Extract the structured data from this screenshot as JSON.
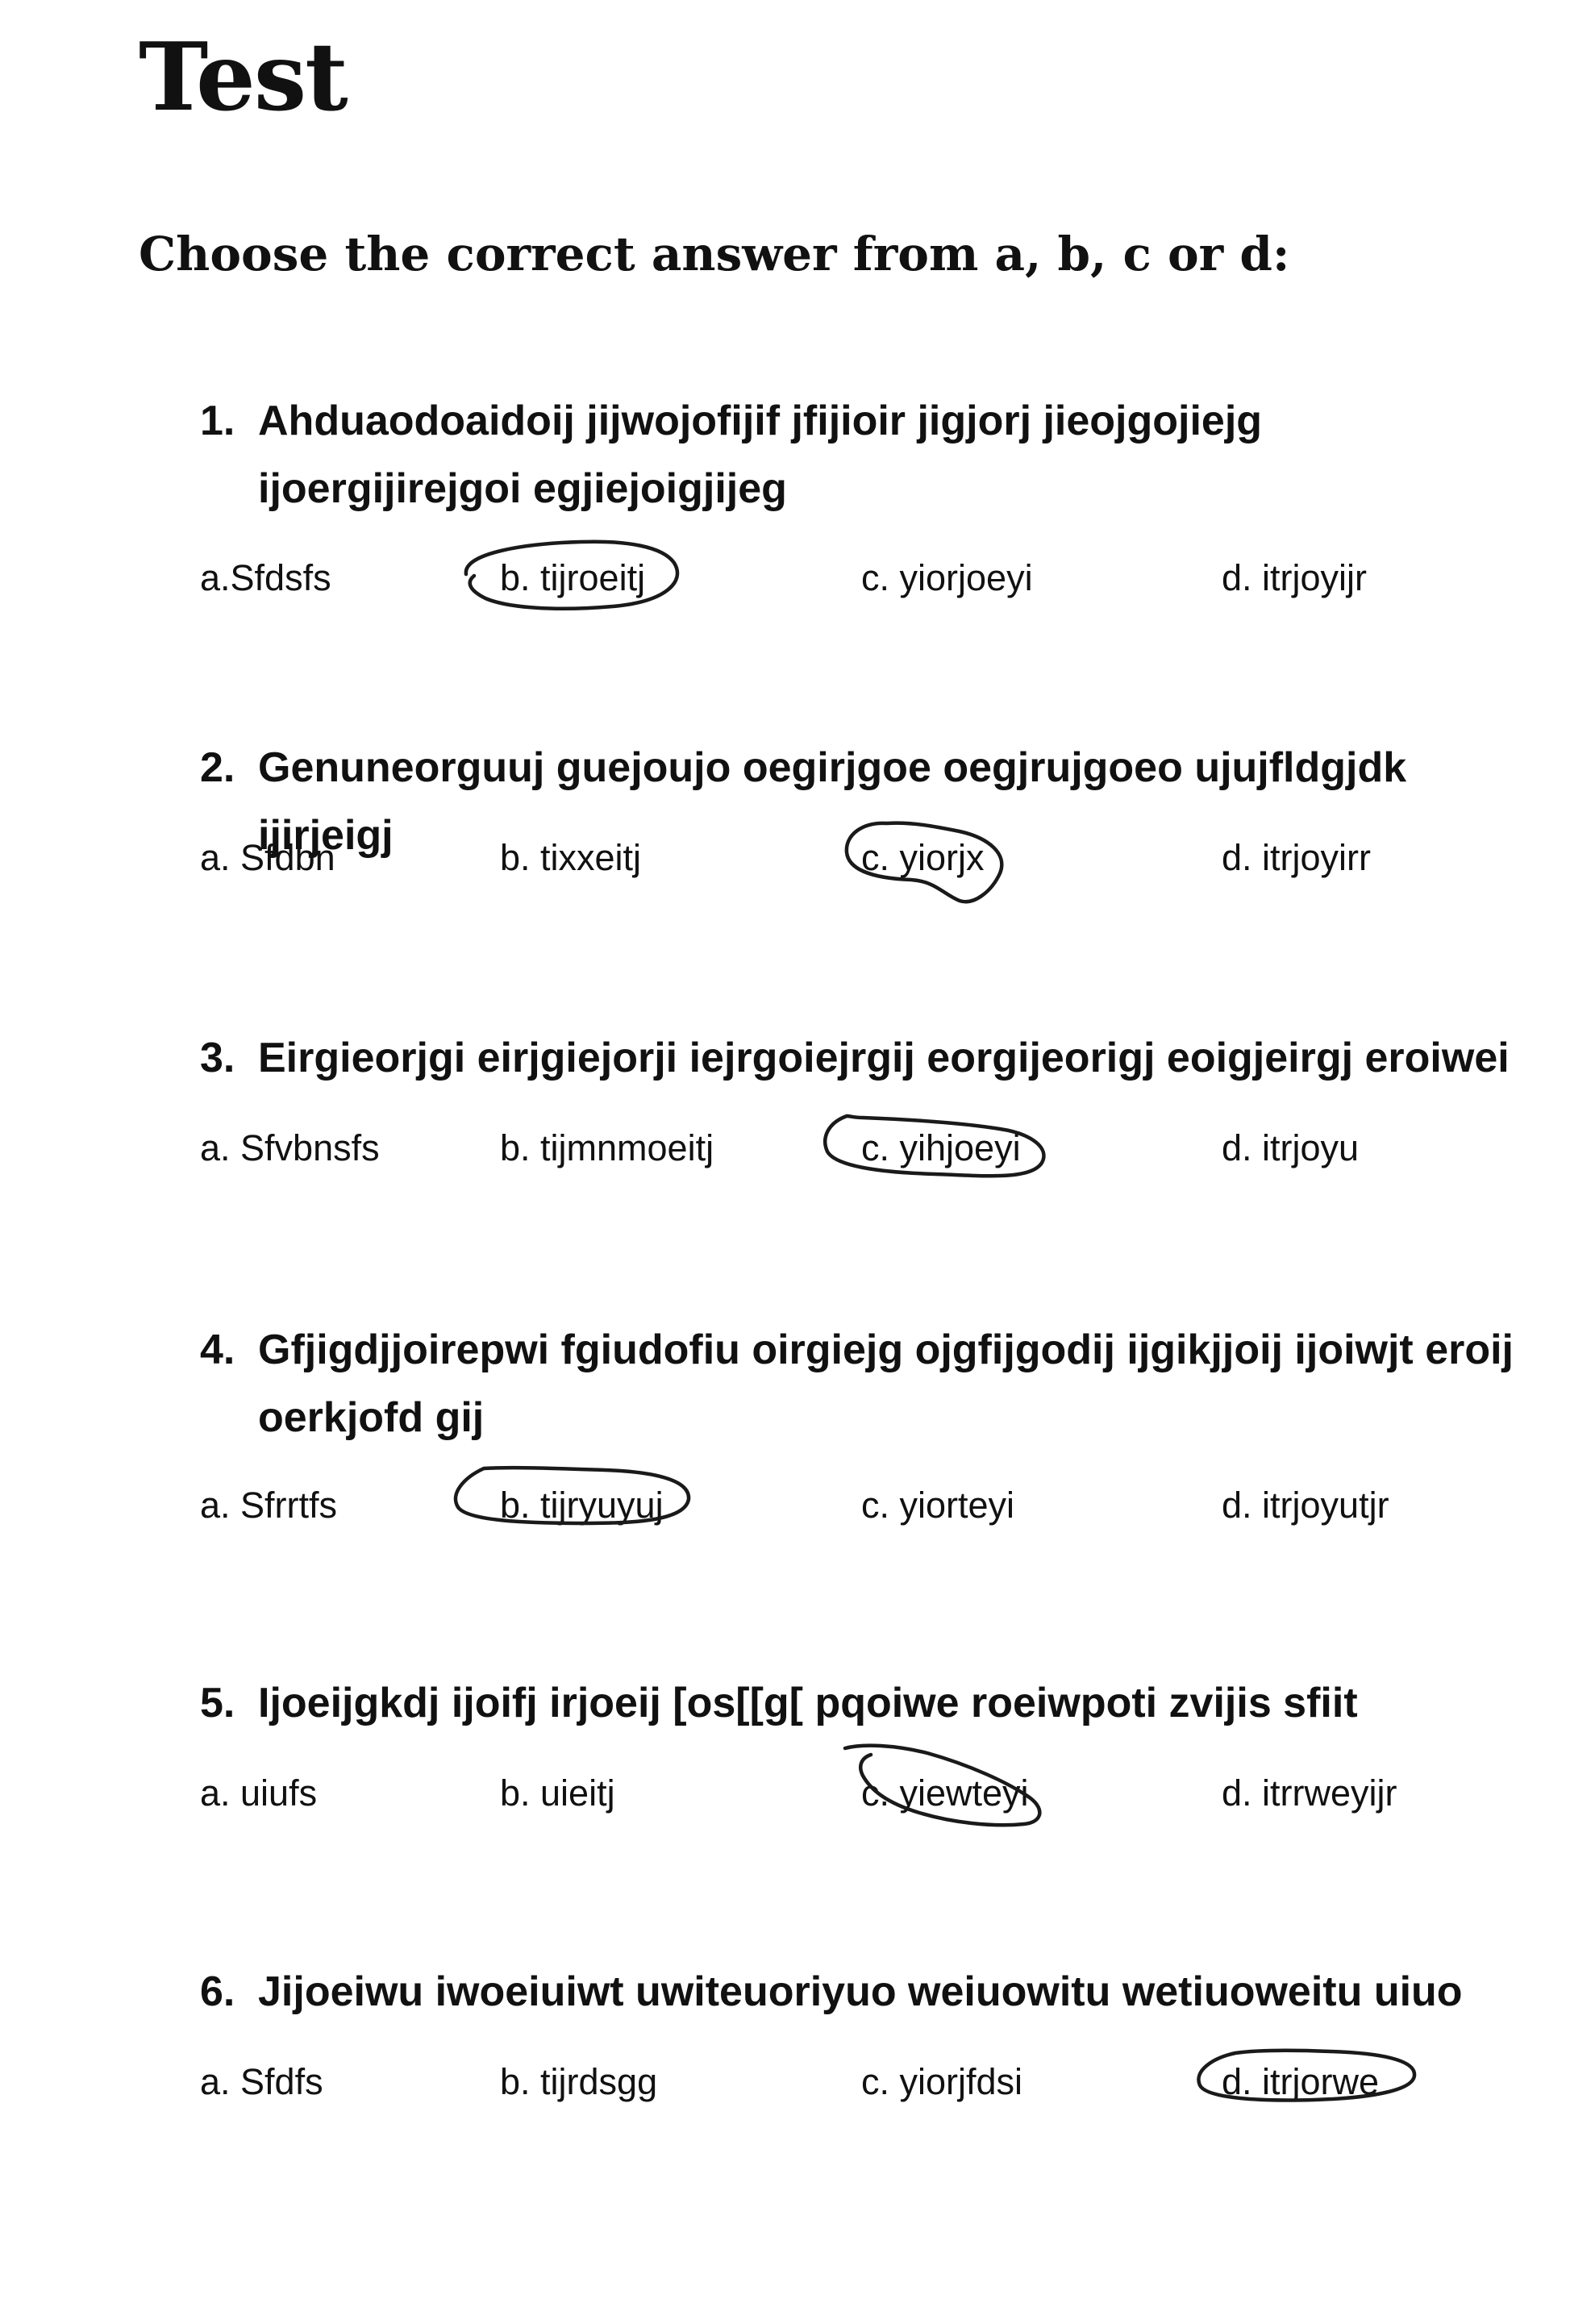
{
  "title": "Test",
  "instruction": "Choose the correct answer from a, b, c or d:",
  "questions": [
    {
      "number": "1.",
      "text": "Ahduaodoaidoij jijwojofijif jfijioir jigjorj jieojgojiejg ijoergijirejgoi egjiejoigjijeg",
      "options": [
        "a.Sfdsfs",
        "b. tijroeitj",
        "c. yiorjoeyi",
        "d. itrjoyijr"
      ],
      "circled": "b"
    },
    {
      "number": "2.",
      "text": "Genuneorguuj guejoujo oegirjgoe oegjrujgoeo ujujfldgjdk ijirjeigj",
      "options": [
        "a. Sfdbn",
        "b. tixxeitj",
        "c. yiorjx",
        "d. itrjoyirr"
      ],
      "circled": "c"
    },
    {
      "number": "3.",
      "text": "Eirgieorjgi eirjgiejorji iejrgoiejrgij eorgijeorigj eoigjeirgj eroiwei",
      "options": [
        "a. Sfvbnsfs",
        "b. tijmnmoeitj",
        "c. yihjoeyi",
        "d. itrjoyu"
      ],
      "circled": "c"
    },
    {
      "number": "4.",
      "text": "Gfjigdjjoirepwi fgiudofiu oirgiejg ojgfijgodij ijgikjjoij ijoiwjt eroij oerkjofd gij",
      "options": [
        "a. Sfrrtfs",
        "b. tijryuyuj",
        "c. yiorteyi",
        "d. itrjoyutjr"
      ],
      "circled": "b"
    },
    {
      "number": "5.",
      "text": "Ijoeijgkdj ijoifj irjoeij [os[[g[ pqoiwe roeiwpoti zvijis sfiit",
      "options": [
        "a. uiufs",
        "b. uieitj",
        "c. yiewteyi",
        "d. itrrweyijr"
      ],
      "circled": "c"
    },
    {
      "number": "6.",
      "text": "Jijoeiwu iwoeiuiwt uwiteuoriyuo weiuowitu wetiuoweitu uiuo",
      "options": [
        "a. Sfdfs",
        "b. tijrdsgg",
        "c. yiorjfdsi",
        "d. itrjorwe"
      ],
      "circled": "d"
    }
  ]
}
